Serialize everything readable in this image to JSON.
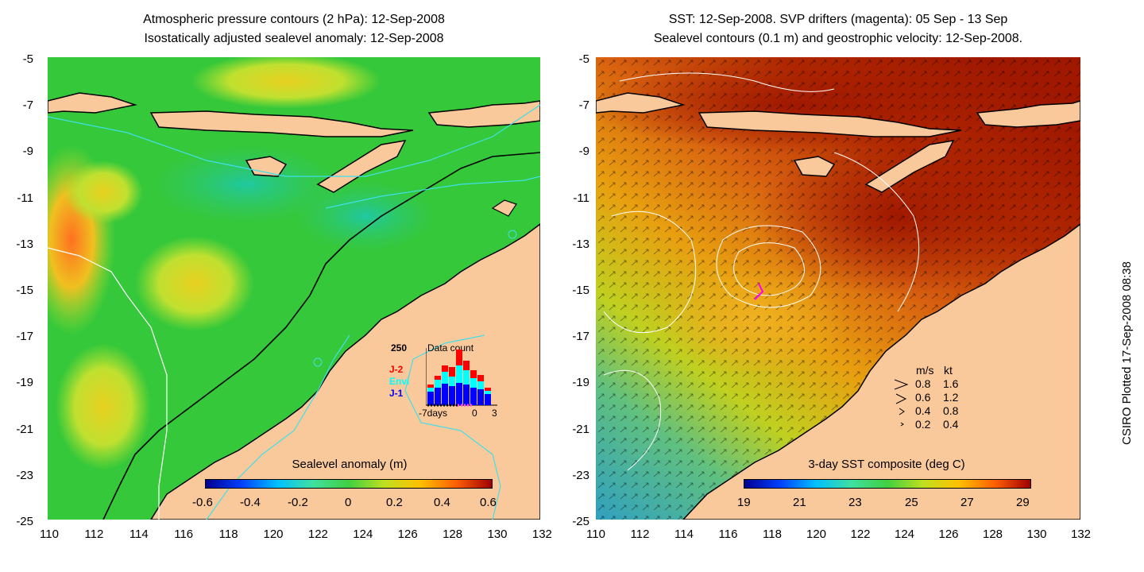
{
  "left_panel": {
    "title_line1": "Atmospheric pressure contours (2 hPa): 12-Sep-2008",
    "title_line2": "Isostatically adjusted sealevel anomaly: 12-Sep-2008",
    "colorbar_label": "Sealevel anomaly (m)",
    "colorbar_ticks": [
      "-0.6",
      "-0.4",
      "-0.2",
      "0",
      "0.2",
      "0.4",
      "0.6"
    ],
    "colors": {
      "ocean": "#35c83a",
      "land": "#f9c89b",
      "contour": "#40e0e8"
    },
    "inset": {
      "count_label": "250",
      "title": "Data count",
      "legend": [
        {
          "name": "J-2",
          "color": "#ff0000"
        },
        {
          "name": "Envi",
          "color": "#00ffff"
        },
        {
          "name": "J-1",
          "color": "#0000ff"
        }
      ],
      "x_ticks": [
        "-7days",
        "0",
        "3"
      ]
    }
  },
  "right_panel": {
    "title_line1": "SST: 12-Sep-2008. SVP drifters (magenta): 05 Sep - 13 Sep",
    "title_line2": "Sealevel contours (0.1 m) and geostrophic velocity: 12-Sep-2008.",
    "colorbar_label": "3-day SST composite (deg C)",
    "colorbar_ticks": [
      "19",
      "21",
      "23",
      "25",
      "27",
      "29"
    ],
    "colors": {
      "warm": "#a82000",
      "mid": "#e07010",
      "cool": "#b0d020",
      "land": "#f9c89b"
    },
    "velocity_legend": {
      "header_ms": "m/s",
      "header_kt": "kt",
      "rows": [
        {
          "ms": "0.8",
          "kt": "1.6"
        },
        {
          "ms": "0.6",
          "kt": "1.2"
        },
        {
          "ms": "0.4",
          "kt": "0.8"
        },
        {
          "ms": "0.2",
          "kt": "0.4"
        }
      ]
    }
  },
  "axes": {
    "y_ticks": [
      "-5",
      "-7",
      "-9",
      "-11",
      "-13",
      "-15",
      "-17",
      "-19",
      "-21",
      "-23",
      "-25"
    ],
    "x_ticks": [
      "110",
      "112",
      "114",
      "116",
      "118",
      "120",
      "122",
      "124",
      "126",
      "128",
      "130",
      "132"
    ]
  },
  "credit": "CSIRO Plotted 17-Sep-2008 08:38"
}
